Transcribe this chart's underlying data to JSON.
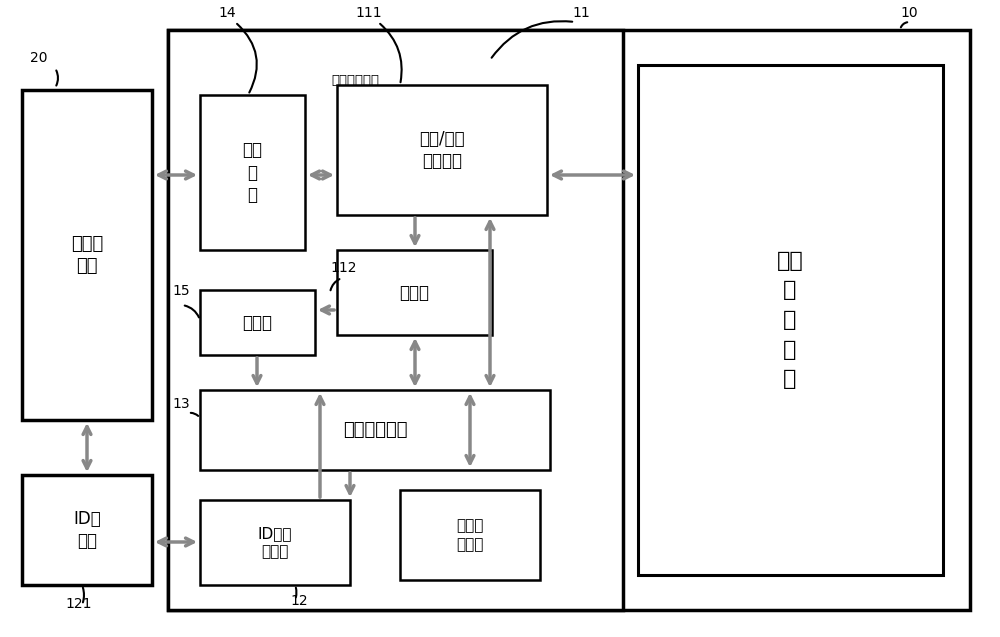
{
  "fig_width": 10.0,
  "fig_height": 6.37,
  "bg_color": "#ffffff",
  "labels": {
    "battery_appliance": "电池用\n电器",
    "id_slot": "ID卡\n插槽",
    "battery_if": "电池\n接\n口",
    "timer": "计时器",
    "id_rw": "ID卡读\n写模块",
    "energy_meas_title": "电量计量模块",
    "io_detect": "输入/输出\n侦测单元",
    "energy_meter": "电量计",
    "central_ctrl": "中央控制模块",
    "batt_state": "电池状\n态存储",
    "batt_energy": "电池\n能\n量\n模\n块"
  },
  "refs": {
    "n10": "10",
    "n11": "11",
    "n12": "12",
    "n13": "13",
    "n14": "14",
    "n15": "15",
    "n20": "20",
    "n111": "111",
    "n112": "112",
    "n121": "121"
  }
}
